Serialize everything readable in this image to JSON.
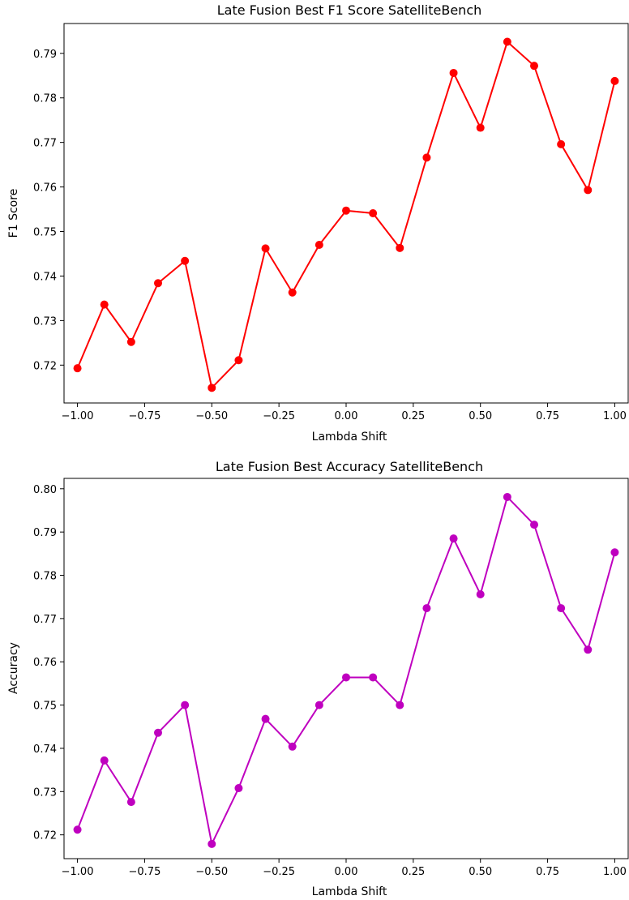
{
  "chart_data": [
    {
      "type": "line",
      "title": "Late Fusion Best F1 Score SatelliteBench",
      "xlabel": "Lambda Shift",
      "ylabel": "F1 Score",
      "color": "#ff0000",
      "xlim": [
        -1.05,
        1.05
      ],
      "ylim": [
        0.7115,
        0.7967
      ],
      "xticks": [
        -1.0,
        -0.75,
        -0.5,
        -0.25,
        0.0,
        0.25,
        0.5,
        0.75,
        1.0
      ],
      "xtick_labels": [
        "−1.00",
        "−0.75",
        "−0.50",
        "−0.25",
        "0.00",
        "0.25",
        "0.50",
        "0.75",
        "1.00"
      ],
      "yticks": [
        0.72,
        0.73,
        0.74,
        0.75,
        0.76,
        0.77,
        0.78,
        0.79
      ],
      "ytick_labels": [
        "0.72",
        "0.73",
        "0.74",
        "0.75",
        "0.76",
        "0.77",
        "0.78",
        "0.79"
      ],
      "x": [
        -1.0,
        -0.9,
        -0.8,
        -0.7,
        -0.6,
        -0.5,
        -0.4,
        -0.3,
        -0.2,
        -0.1,
        0.0,
        0.1,
        0.2,
        0.3,
        0.4,
        0.5,
        0.6,
        0.7,
        0.8,
        0.9,
        1.0
      ],
      "y": [
        0.7193,
        0.7336,
        0.7252,
        0.7384,
        0.7434,
        0.7149,
        0.7211,
        0.7462,
        0.7363,
        0.747,
        0.7547,
        0.7541,
        0.7463,
        0.7666,
        0.7856,
        0.7733,
        0.7926,
        0.7872,
        0.7696,
        0.7593,
        0.7838
      ],
      "grid": false
    },
    {
      "type": "line",
      "title": "Late Fusion Best Accuracy SatelliteBench",
      "xlabel": "Lambda Shift",
      "ylabel": "Accuracy",
      "color": "#bf00bf",
      "xlim": [
        -1.05,
        1.05
      ],
      "ylim": [
        0.7145,
        0.8024
      ],
      "xticks": [
        -1.0,
        -0.75,
        -0.5,
        -0.25,
        0.0,
        0.25,
        0.5,
        0.75,
        1.0
      ],
      "xtick_labels": [
        "−1.00",
        "−0.75",
        "−0.50",
        "−0.25",
        "0.00",
        "0.25",
        "0.50",
        "0.75",
        "1.00"
      ],
      "yticks": [
        0.72,
        0.73,
        0.74,
        0.75,
        0.76,
        0.77,
        0.78,
        0.79,
        0.8
      ],
      "ytick_labels": [
        "0.72",
        "0.73",
        "0.74",
        "0.75",
        "0.76",
        "0.77",
        "0.78",
        "0.79",
        "0.80"
      ],
      "x": [
        -1.0,
        -0.9,
        -0.8,
        -0.7,
        -0.6,
        -0.5,
        -0.4,
        -0.3,
        -0.2,
        -0.1,
        0.0,
        0.1,
        0.2,
        0.3,
        0.4,
        0.5,
        0.6,
        0.7,
        0.8,
        0.9,
        1.0
      ],
      "y": [
        0.7212,
        0.7372,
        0.7276,
        0.7436,
        0.75,
        0.7179,
        0.7308,
        0.7468,
        0.7404,
        0.75,
        0.7564,
        0.7564,
        0.75,
        0.7724,
        0.7885,
        0.7756,
        0.7981,
        0.7917,
        0.7724,
        0.7628,
        0.7853
      ],
      "grid": false
    }
  ]
}
